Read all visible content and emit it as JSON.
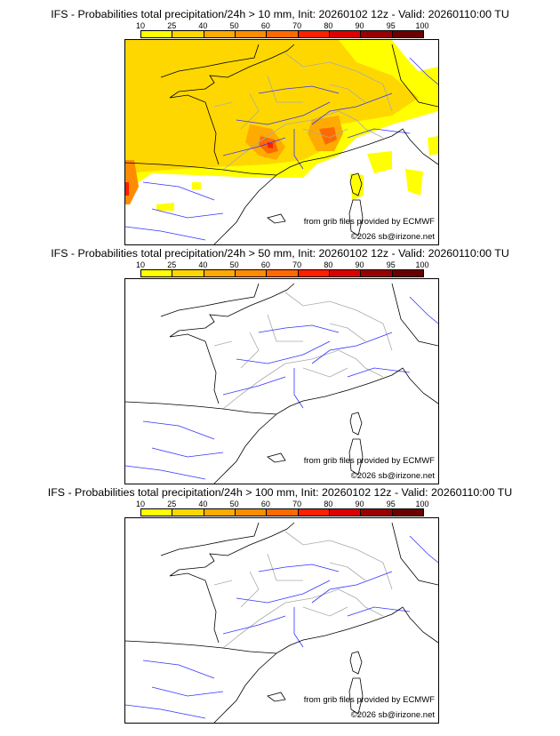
{
  "colorbar": {
    "ticks": [
      "10",
      "25",
      "40",
      "50",
      "60",
      "70",
      "80",
      "90",
      "95",
      "100"
    ],
    "colors": [
      "#ffff00",
      "#ffd700",
      "#ffaa00",
      "#ff8c00",
      "#ff6a00",
      "#ff2000",
      "#dd0000",
      "#990000",
      "#6b0000"
    ]
  },
  "panels": [
    {
      "title": "IFS - Probabilities total precipitation/24h > 10 mm, Init: 20260102 12z - Valid: 20260110:00 TU",
      "threshold_mm": 10,
      "has_precip": true
    },
    {
      "title": "IFS - Probabilities total precipitation/24h > 50 mm, Init: 20260102 12z - Valid: 20260110:00 TU",
      "threshold_mm": 50,
      "has_precip": false
    },
    {
      "title": "IFS - Probabilities total precipitation/24h > 100 mm, Init: 20260102 12z - Valid: 20260110:00 TU",
      "threshold_mm": 100,
      "has_precip": false
    }
  ],
  "credits": {
    "source": "from grib files provided by ECMWF",
    "copyright": "©2026 sb@irizone.net"
  }
}
